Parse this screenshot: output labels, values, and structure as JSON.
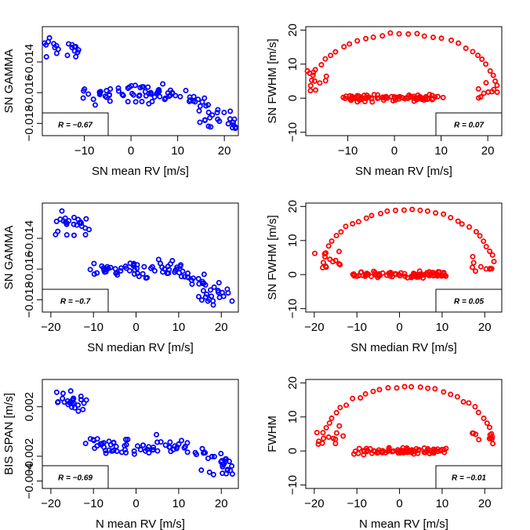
{
  "chart_data": [
    {
      "type": "scatter",
      "xlabel": "SN mean RV [m/s]",
      "ylabel": "SN GAMMA",
      "xlim": [
        -19,
        23
      ],
      "ylim": [
        -0.0188,
        -0.0117
      ],
      "xticks": [
        -10,
        0,
        10,
        20
      ],
      "xtick_labels": [
        "−10",
        "0",
        "10",
        "20"
      ],
      "yticks": [
        -0.014,
        -0.016,
        -0.018
      ],
      "ytick_labels": [
        "−0.014",
        "−0.016",
        "−0.018"
      ],
      "color": "#0000ff",
      "legend": "R = −0.67",
      "legend_pos": "bottom-left",
      "grid": false
    },
    {
      "type": "scatter",
      "xlabel": "SN mean RV [m/s]",
      "ylabel": "SN FWHM [m/s]",
      "xlim": [
        -19,
        23
      ],
      "ylim": [
        -11,
        21
      ],
      "xticks": [
        -10,
        0,
        10,
        20
      ],
      "xtick_labels": [
        "−10",
        "0",
        "10",
        "20"
      ],
      "yticks": [
        -10,
        0,
        10,
        20
      ],
      "ytick_labels": [
        "−10",
        "0",
        "10",
        "20"
      ],
      "color": "#ff0000",
      "legend": "R = 0.07",
      "legend_pos": "bottom-right",
      "grid": false
    },
    {
      "type": "scatter",
      "xlabel": "SN median RV [m/s]",
      "ylabel": "SN GAMMA",
      "xlim": [
        -22,
        24
      ],
      "ylim": [
        -0.0188,
        -0.0117
      ],
      "xticks": [
        -20,
        -10,
        0,
        10,
        20
      ],
      "xtick_labels": [
        "−20",
        "−10",
        "0",
        "10",
        "20"
      ],
      "yticks": [
        -0.014,
        -0.016,
        -0.018
      ],
      "ytick_labels": [
        "−0.014",
        "−0.016",
        "−0.018"
      ],
      "color": "#0000ff",
      "legend": "R = −0.7",
      "legend_pos": "bottom-left",
      "grid": false
    },
    {
      "type": "scatter",
      "xlabel": "SN median RV [m/s]",
      "ylabel": "SN FWHM [m/s]",
      "xlim": [
        -22,
        24
      ],
      "ylim": [
        -11,
        21
      ],
      "xticks": [
        -20,
        -10,
        0,
        10,
        20
      ],
      "xtick_labels": [
        "−20",
        "−10",
        "0",
        "10",
        "20"
      ],
      "yticks": [
        -10,
        0,
        10,
        20
      ],
      "ytick_labels": [
        "−10",
        "0",
        "10",
        "20"
      ],
      "color": "#ff0000",
      "legend": "R = 0.05",
      "legend_pos": "bottom-right",
      "grid": false
    },
    {
      "type": "scatter",
      "xlabel": "N mean RV [m/s]",
      "ylabel": "BIS SPAN [m/s]",
      "xlim": [
        -22,
        24
      ],
      "ylim": [
        -0.0046,
        0.0042
      ],
      "xticks": [
        -20,
        -10,
        0,
        10,
        20
      ],
      "xtick_labels": [
        "−20",
        "−10",
        "0",
        "10",
        "20"
      ],
      "yticks": [
        0.002,
        -0.002,
        -0.004
      ],
      "ytick_labels": [
        "0.002",
        "−0.002",
        "−0.004"
      ],
      "color": "#0000ff",
      "legend": "R = −0.69",
      "legend_pos": "bottom-left",
      "grid": false
    },
    {
      "type": "scatter",
      "xlabel": "N mean RV [m/s]",
      "ylabel": "FWHM",
      "xlim": [
        -22,
        24
      ],
      "ylim": [
        -11,
        21
      ],
      "xticks": [
        -20,
        -10,
        0,
        10,
        20
      ],
      "xtick_labels": [
        "−20",
        "−10",
        "0",
        "10",
        "20"
      ],
      "yticks": [
        -10,
        0,
        10,
        20
      ],
      "ytick_labels": [
        "−10",
        "0",
        "10",
        "20"
      ],
      "color": "#ff0000",
      "legend": "R = −0.01",
      "legend_pos": "bottom-right",
      "grid": false
    }
  ]
}
